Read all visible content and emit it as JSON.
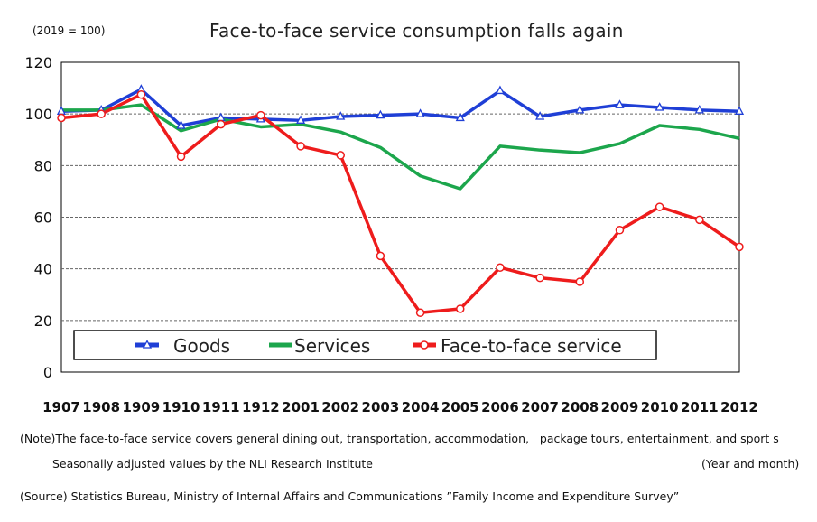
{
  "title": "Face-to-face service consumption falls again",
  "unit_label": "(2019 = 100)",
  "x_unit_label": "(Year and month)",
  "notes": {
    "note1": "(Note)The face-to-face service covers general dining out, transportation, accommodation,   package tours, entertainment, and sport s",
    "note2": "Seasonally adjusted values by the NLI Research Institute",
    "source": "(Source) Statistics Bureau, Ministry of Internal Affairs and Communications ”Family Income and Expenditure Survey”"
  },
  "chart_data": {
    "type": "line",
    "title": "Face-to-face service consumption falls again",
    "xlabel": "(Year and month)",
    "ylabel": "(2019 = 100)",
    "categories": [
      "1907",
      "1908",
      "1909",
      "1910",
      "1911",
      "1912",
      "2001",
      "2002",
      "2003",
      "2004",
      "2005",
      "2006",
      "2007",
      "2008",
      "2009",
      "2010",
      "2011",
      "2012"
    ],
    "ylim": [
      0,
      120
    ],
    "yticks": [
      0,
      20,
      40,
      60,
      80,
      100,
      120
    ],
    "grid": "horizontal dashed",
    "legend_position": "bottom",
    "series": [
      {
        "name": "Goods",
        "color": "#1f3fd6",
        "marker": "triangle",
        "values": [
          101,
          101.5,
          109.5,
          95.5,
          98.5,
          98,
          97.5,
          99,
          99.5,
          100,
          98.5,
          109,
          99,
          101.5,
          103.5,
          102.5,
          101.5,
          101
        ]
      },
      {
        "name": "Services",
        "color": "#1ca64c",
        "marker": "none",
        "values": [
          101.5,
          101.5,
          103.5,
          93.5,
          98,
          95,
          96,
          93,
          87,
          76,
          71,
          87.5,
          86,
          85,
          88.5,
          95.5,
          94,
          90.5
        ]
      },
      {
        "name": "Face-to-face service",
        "color": "#ee1c1c",
        "marker": "circle",
        "values": [
          98.5,
          100,
          107.5,
          83.5,
          96,
          99.5,
          87.5,
          84,
          45,
          23,
          24.5,
          40.5,
          36.5,
          35,
          55,
          64,
          59,
          48.5
        ]
      }
    ]
  }
}
